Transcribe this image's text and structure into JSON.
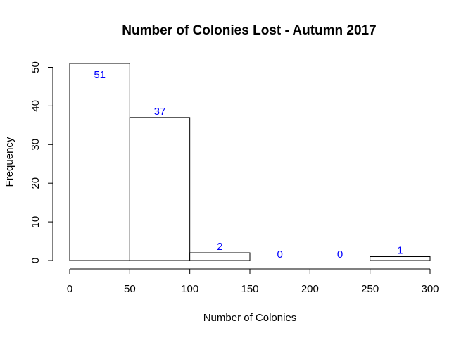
{
  "chart_data": {
    "type": "bar",
    "title": "Number of Colonies Lost - Autumn 2017",
    "xlabel": "Number of Colonies",
    "ylabel": "Frequency",
    "bins": [
      {
        "start": 0,
        "end": 50,
        "count": 51,
        "label": "51"
      },
      {
        "start": 50,
        "end": 100,
        "count": 37,
        "label": "37"
      },
      {
        "start": 100,
        "end": 150,
        "count": 2,
        "label": "2"
      },
      {
        "start": 150,
        "end": 200,
        "count": 0,
        "label": "0"
      },
      {
        "start": 200,
        "end": 250,
        "count": 0,
        "label": "0"
      },
      {
        "start": 250,
        "end": 300,
        "count": 1,
        "label": "1"
      }
    ],
    "xlim": [
      0,
      300
    ],
    "ylim": [
      0,
      51
    ],
    "x_ticks": [
      0,
      50,
      100,
      150,
      200,
      250,
      300
    ],
    "x_tick_labels": [
      "0",
      "50",
      "100",
      "150",
      "200",
      "250",
      "300"
    ],
    "y_ticks": [
      0,
      10,
      20,
      30,
      40,
      50
    ],
    "y_tick_labels": [
      "0",
      "10",
      "20",
      "30",
      "40",
      "50"
    ],
    "grid": false,
    "bar_fill": "#ffffff",
    "bar_stroke": "#000000",
    "label_color": "#0000ff"
  }
}
